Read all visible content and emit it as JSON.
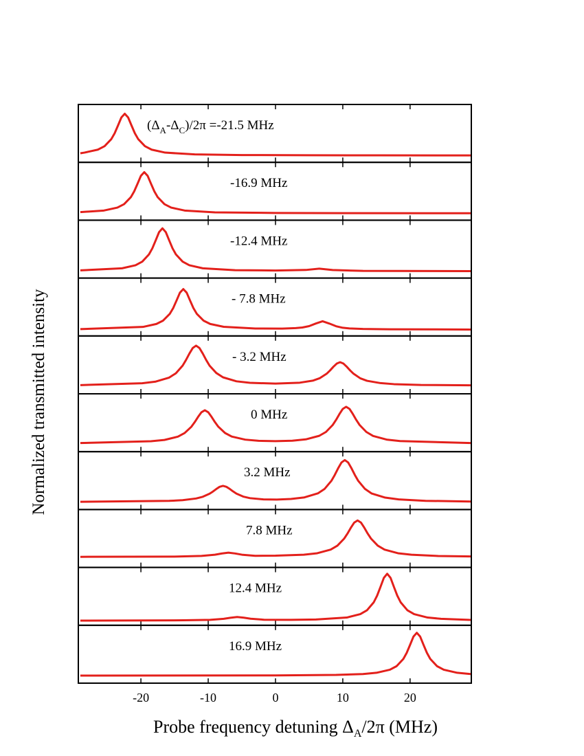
{
  "chart_data": {
    "type": "stacked_line",
    "ylabel": "Normalized transmitted intensity",
    "xlabel_parts": [
      "Probe frequency detuning Δ",
      "A",
      "/2π (MHz)"
    ],
    "xlim": [
      -29.3,
      29.1
    ],
    "ylim": [
      0,
      1
    ],
    "xticks": [
      -20,
      -10,
      0,
      10,
      20
    ],
    "color": "#e3201b",
    "panels": [
      {
        "label_parts": [
          "(Δ",
          "A",
          "-Δ",
          "C",
          ")/2π =-21.5 MHz"
        ],
        "x": [
          -29,
          -28.4,
          -26.4,
          -25.4,
          -24.4,
          -23.9,
          -23.4,
          -22.9,
          -22.4,
          -21.9,
          -21.4,
          -20.9,
          -20.4,
          -19.4,
          -18.4,
          -16.4,
          -12,
          -5,
          5,
          15,
          29
        ],
        "values": [
          0.157,
          0.168,
          0.219,
          0.279,
          0.401,
          0.503,
          0.638,
          0.776,
          0.84,
          0.776,
          0.638,
          0.503,
          0.401,
          0.279,
          0.219,
          0.168,
          0.137,
          0.126,
          0.123,
          0.121,
          0.12
        ]
      },
      {
        "label_parts": [
          "-16.9 MHz"
        ],
        "x": [
          -29,
          -25.5,
          -23.5,
          -22.5,
          -21.5,
          -21,
          -20.5,
          -20,
          -19.5,
          -19,
          -18.5,
          -18,
          -17.5,
          -16.5,
          -15.5,
          -13.5,
          -9,
          0,
          10,
          29
        ],
        "values": [
          0.14,
          0.167,
          0.218,
          0.277,
          0.397,
          0.498,
          0.63,
          0.767,
          0.83,
          0.767,
          0.63,
          0.498,
          0.397,
          0.277,
          0.218,
          0.167,
          0.136,
          0.125,
          0.122,
          0.12
        ]
      },
      {
        "label_parts": [
          "-12.4 MHz"
        ],
        "x": [
          -29,
          -22.8,
          -20.8,
          -19.8,
          -18.8,
          -18.3,
          -17.8,
          -17.3,
          -16.8,
          -16.3,
          -15.8,
          -15.3,
          -14.8,
          -13.8,
          -12.8,
          -10.8,
          -6,
          0,
          4.5,
          6.5,
          8.5,
          13,
          29
        ],
        "values": [
          0.133,
          0.169,
          0.222,
          0.284,
          0.409,
          0.514,
          0.652,
          0.794,
          0.86,
          0.794,
          0.652,
          0.514,
          0.409,
          0.284,
          0.222,
          0.169,
          0.136,
          0.131,
          0.14,
          0.163,
          0.139,
          0.124,
          0.12
        ]
      },
      {
        "label_parts": [
          "- 7.8 MHz"
        ],
        "x": [
          -29,
          -19.7,
          -17.7,
          -16.7,
          -15.7,
          -15.2,
          -14.7,
          -14.2,
          -13.7,
          -13.2,
          -12.7,
          -12.2,
          -11.7,
          -10.7,
          -9.7,
          -7.7,
          -3,
          1,
          3,
          4,
          5,
          6,
          7,
          8,
          9,
          10,
          11,
          13,
          17,
          29
        ],
        "values": [
          0.118,
          0.156,
          0.207,
          0.265,
          0.383,
          0.482,
          0.613,
          0.748,
          0.81,
          0.748,
          0.613,
          0.482,
          0.383,
          0.265,
          0.207,
          0.158,
          0.129,
          0.127,
          0.135,
          0.146,
          0.17,
          0.215,
          0.254,
          0.214,
          0.168,
          0.141,
          0.13,
          0.121,
          0.115,
          0.111
        ]
      },
      {
        "label_parts": [
          "- 3.2 MHz"
        ],
        "x": [
          -29,
          -19.8,
          -17.8,
          -15.8,
          -14.8,
          -13.8,
          -13.3,
          -12.8,
          -12.3,
          -11.8,
          -11.3,
          -10.8,
          -10.3,
          -9.8,
          -8.8,
          -7.8,
          -5.8,
          -3.8,
          0,
          3.6,
          5.6,
          6.6,
          7.6,
          8.1,
          8.6,
          9.1,
          9.6,
          10.1,
          10.6,
          11.1,
          11.6,
          12.6,
          13.6,
          15.6,
          17.6,
          21.6,
          29
        ],
        "values": [
          0.15,
          0.183,
          0.211,
          0.28,
          0.355,
          0.487,
          0.584,
          0.694,
          0.791,
          0.832,
          0.791,
          0.694,
          0.584,
          0.487,
          0.36,
          0.285,
          0.216,
          0.19,
          0.176,
          0.192,
          0.229,
          0.271,
          0.347,
          0.403,
          0.467,
          0.522,
          0.546,
          0.522,
          0.467,
          0.403,
          0.347,
          0.268,
          0.225,
          0.185,
          0.167,
          0.153,
          0.147
        ]
      },
      {
        "label_parts": [
          "0 MHz"
        ],
        "x": [
          -29,
          -18.5,
          -16.5,
          -14.5,
          -13.5,
          -12.5,
          -12,
          -11.5,
          -11,
          -10.5,
          -10,
          -9.5,
          -9,
          -8.5,
          -7.5,
          -6.5,
          -4.5,
          -2.5,
          0,
          2.5,
          4.5,
          6.5,
          7.5,
          8.5,
          9,
          9.5,
          10,
          10.5,
          11,
          11.5,
          12,
          12.5,
          13.5,
          14.5,
          16.5,
          18.5,
          29
        ],
        "values": [
          0.149,
          0.18,
          0.203,
          0.26,
          0.322,
          0.431,
          0.511,
          0.602,
          0.682,
          0.716,
          0.682,
          0.602,
          0.511,
          0.432,
          0.323,
          0.261,
          0.208,
          0.188,
          0.182,
          0.19,
          0.213,
          0.274,
          0.341,
          0.461,
          0.549,
          0.65,
          0.739,
          0.776,
          0.739,
          0.65,
          0.549,
          0.461,
          0.341,
          0.272,
          0.209,
          0.183,
          0.15
        ]
      },
      {
        "label_parts": [
          "3.2 MHz"
        ],
        "x": [
          -29,
          -15.8,
          -13.8,
          -11.8,
          -10.8,
          -9.8,
          -9.3,
          -8.8,
          -8.3,
          -7.8,
          -7.3,
          -6.8,
          -6.3,
          -5.8,
          -4.8,
          -3.8,
          -1.8,
          0.2,
          2.3,
          4.3,
          6.3,
          7.3,
          8.3,
          8.8,
          9.3,
          9.8,
          10.3,
          10.8,
          11.3,
          11.8,
          12.3,
          13.3,
          14.3,
          16.3,
          18.3,
          22.3,
          29
        ],
        "values": [
          0.134,
          0.15,
          0.162,
          0.191,
          0.221,
          0.273,
          0.311,
          0.355,
          0.393,
          0.409,
          0.393,
          0.356,
          0.313,
          0.275,
          0.224,
          0.197,
          0.176,
          0.173,
          0.183,
          0.21,
          0.28,
          0.357,
          0.495,
          0.596,
          0.711,
          0.813,
          0.855,
          0.813,
          0.711,
          0.596,
          0.495,
          0.356,
          0.277,
          0.206,
          0.176,
          0.151,
          0.139
        ]
      },
      {
        "label_parts": [
          "7.8 MHz"
        ],
        "x": [
          -29,
          -15,
          -11,
          -9,
          -8,
          -7,
          -6,
          -5,
          -3,
          0,
          4.2,
          6.2,
          8.2,
          9.2,
          10.2,
          10.7,
          11.2,
          11.7,
          12.2,
          12.7,
          13.2,
          13.7,
          14.2,
          15.2,
          16.2,
          18.2,
          20.2,
          24.2,
          29
        ],
        "values": [
          0.183,
          0.187,
          0.198,
          0.219,
          0.24,
          0.255,
          0.241,
          0.22,
          0.2,
          0.203,
          0.22,
          0.245,
          0.308,
          0.376,
          0.497,
          0.585,
          0.686,
          0.775,
          0.812,
          0.775,
          0.686,
          0.585,
          0.497,
          0.376,
          0.308,
          0.245,
          0.219,
          0.197,
          0.19
        ]
      },
      {
        "label_parts": [
          "12.4 MHz"
        ],
        "x": [
          -29,
          -13.7,
          -9.7,
          -7.7,
          -6.7,
          -5.7,
          -4.7,
          -3.7,
          -1.7,
          2.3,
          6,
          10.6,
          12.6,
          13.6,
          14.6,
          15.1,
          15.6,
          16.1,
          16.6,
          17.1,
          17.6,
          18.1,
          18.6,
          19.6,
          20.6,
          22.6,
          24.6,
          29
        ],
        "values": [
          0.081,
          0.086,
          0.094,
          0.112,
          0.13,
          0.143,
          0.131,
          0.113,
          0.096,
          0.094,
          0.1,
          0.134,
          0.193,
          0.26,
          0.397,
          0.512,
          0.663,
          0.819,
          0.891,
          0.819,
          0.663,
          0.512,
          0.397,
          0.26,
          0.193,
          0.134,
          0.112,
          0.093
        ]
      },
      {
        "label_parts": [
          "16.9 MHz"
        ],
        "x": [
          -29,
          0,
          9,
          13,
          15,
          17,
          18,
          19,
          19.5,
          20,
          20.5,
          21,
          21.5,
          22,
          22.5,
          23,
          24,
          25,
          27,
          29
        ],
        "values": [
          0.13,
          0.134,
          0.143,
          0.158,
          0.179,
          0.232,
          0.294,
          0.419,
          0.524,
          0.662,
          0.804,
          0.87,
          0.804,
          0.662,
          0.524,
          0.419,
          0.294,
          0.232,
          0.179,
          0.158
        ]
      }
    ]
  }
}
